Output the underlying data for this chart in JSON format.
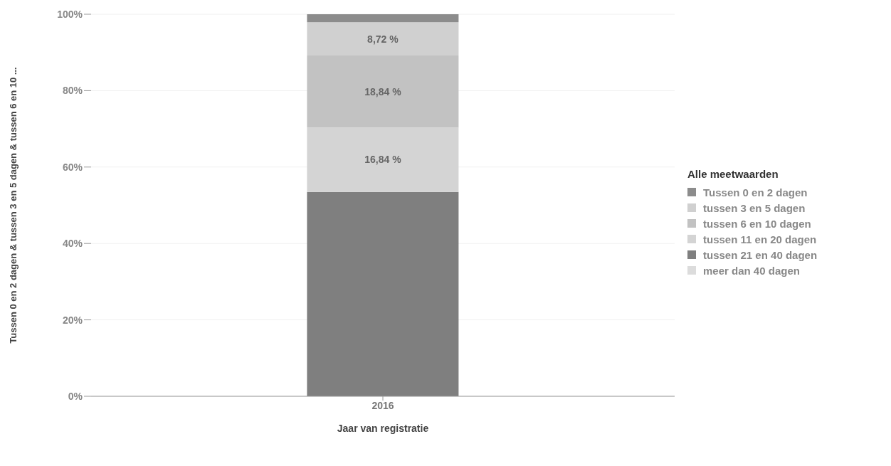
{
  "chart_data": {
    "type": "bar",
    "stacked": true,
    "categories": [
      "2016"
    ],
    "xlabel": "Jaar van registratie",
    "ylabel": "Tussen 0 en 2 dagen & tussen 3 en 5 dagen & tussen 6 en 10 ...",
    "legend_title": "Alle meetwaarden",
    "legend": "right",
    "grid": "y",
    "ylim": [
      0,
      100
    ],
    "yticks": [
      {
        "value": 0,
        "label": "0%"
      },
      {
        "value": 20,
        "label": "20%"
      },
      {
        "value": 40,
        "label": "40%"
      },
      {
        "value": 60,
        "label": "60%"
      },
      {
        "value": 80,
        "label": "80%"
      },
      {
        "value": 100,
        "label": "100%"
      }
    ],
    "series": [
      {
        "name": "meer dan 40 dagen",
        "color": "#dcdcdc",
        "values": [
          0
        ]
      },
      {
        "name": "tussen 21 en 40 dagen",
        "color": "#7f7f7f",
        "values": [
          53.5
        ]
      },
      {
        "name": "tussen 11 en 20 dagen",
        "color": "#d4d4d4",
        "values": [
          16.84
        ],
        "value_labels": [
          "16,84 %"
        ]
      },
      {
        "name": "tussen 6 en 10 dagen",
        "color": "#c2c2c2",
        "values": [
          18.84
        ],
        "value_labels": [
          "18,84 %"
        ]
      },
      {
        "name": "tussen 3 en 5 dagen",
        "color": "#d0d0d0",
        "values": [
          8.72
        ],
        "value_labels": [
          "8,72 %"
        ]
      },
      {
        "name": "Tussen 0 en 2 dagen",
        "color": "#8c8c8c",
        "values": [
          2.1
        ]
      }
    ]
  }
}
